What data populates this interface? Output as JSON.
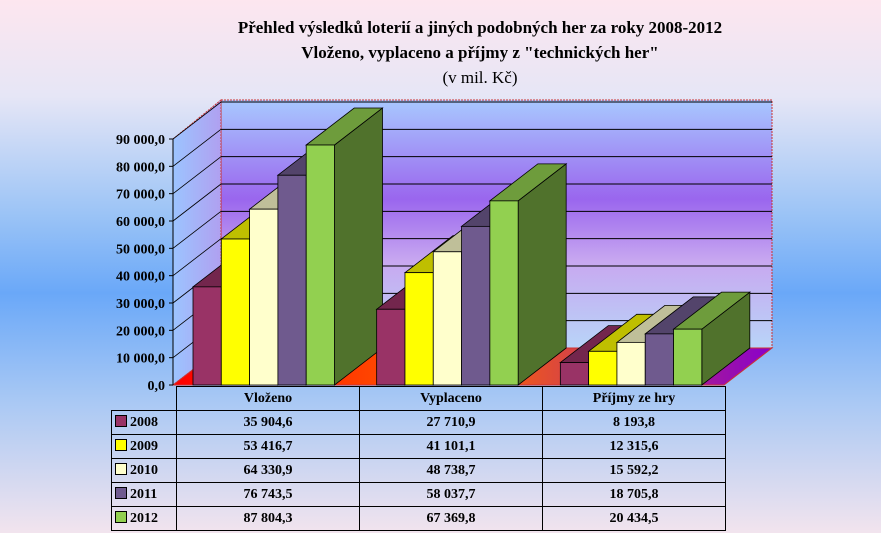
{
  "title": "Přehled výsledků loterií a jiných podobných her za roky 2008-2012",
  "subtitle": "Vloženo, vyplaceno a příjmy z \"technických her\"",
  "units": "(v mil. Kč)",
  "chart_data": {
    "type": "bar",
    "style": "3d-clustered-column with data table",
    "categories": [
      "Vloženo",
      "Vyplaceno",
      "Příjmy ze hry"
    ],
    "series": [
      {
        "name": "2008",
        "color": "#993366",
        "values": [
          35904.6,
          27710.9,
          8193.8
        ],
        "labels": [
          "35 904,6",
          "27 710,9",
          "8 193,8"
        ]
      },
      {
        "name": "2009",
        "color": "#ffff00",
        "values": [
          53416.7,
          41101.1,
          12315.6
        ],
        "labels": [
          "53 416,7",
          "41 101,1",
          "12 315,6"
        ]
      },
      {
        "name": "2010",
        "color": "#ffffcc",
        "values": [
          64330.9,
          48738.7,
          15592.2
        ],
        "labels": [
          "64 330,9",
          "48 738,7",
          "15 592,2"
        ]
      },
      {
        "name": "2011",
        "color": "#6f5a8e",
        "values": [
          76743.5,
          58037.7,
          18705.8
        ],
        "labels": [
          "76 743,5",
          "58 037,7",
          "18 705,8"
        ]
      },
      {
        "name": "2012",
        "color": "#92d050",
        "values": [
          87804.3,
          67369.8,
          20434.5
        ],
        "labels": [
          "87 804,3",
          "67 369,8",
          "20 434,5"
        ]
      }
    ],
    "ylim": [
      0,
      90000
    ],
    "yticks": [
      "0,0",
      "10 000,0",
      "20 000,0",
      "30 000,0",
      "40 000,0",
      "50 000,0",
      "60 000,0",
      "70 000,0",
      "80 000,0",
      "90 000,0"
    ],
    "grid": true,
    "legend": "data-table-left"
  }
}
